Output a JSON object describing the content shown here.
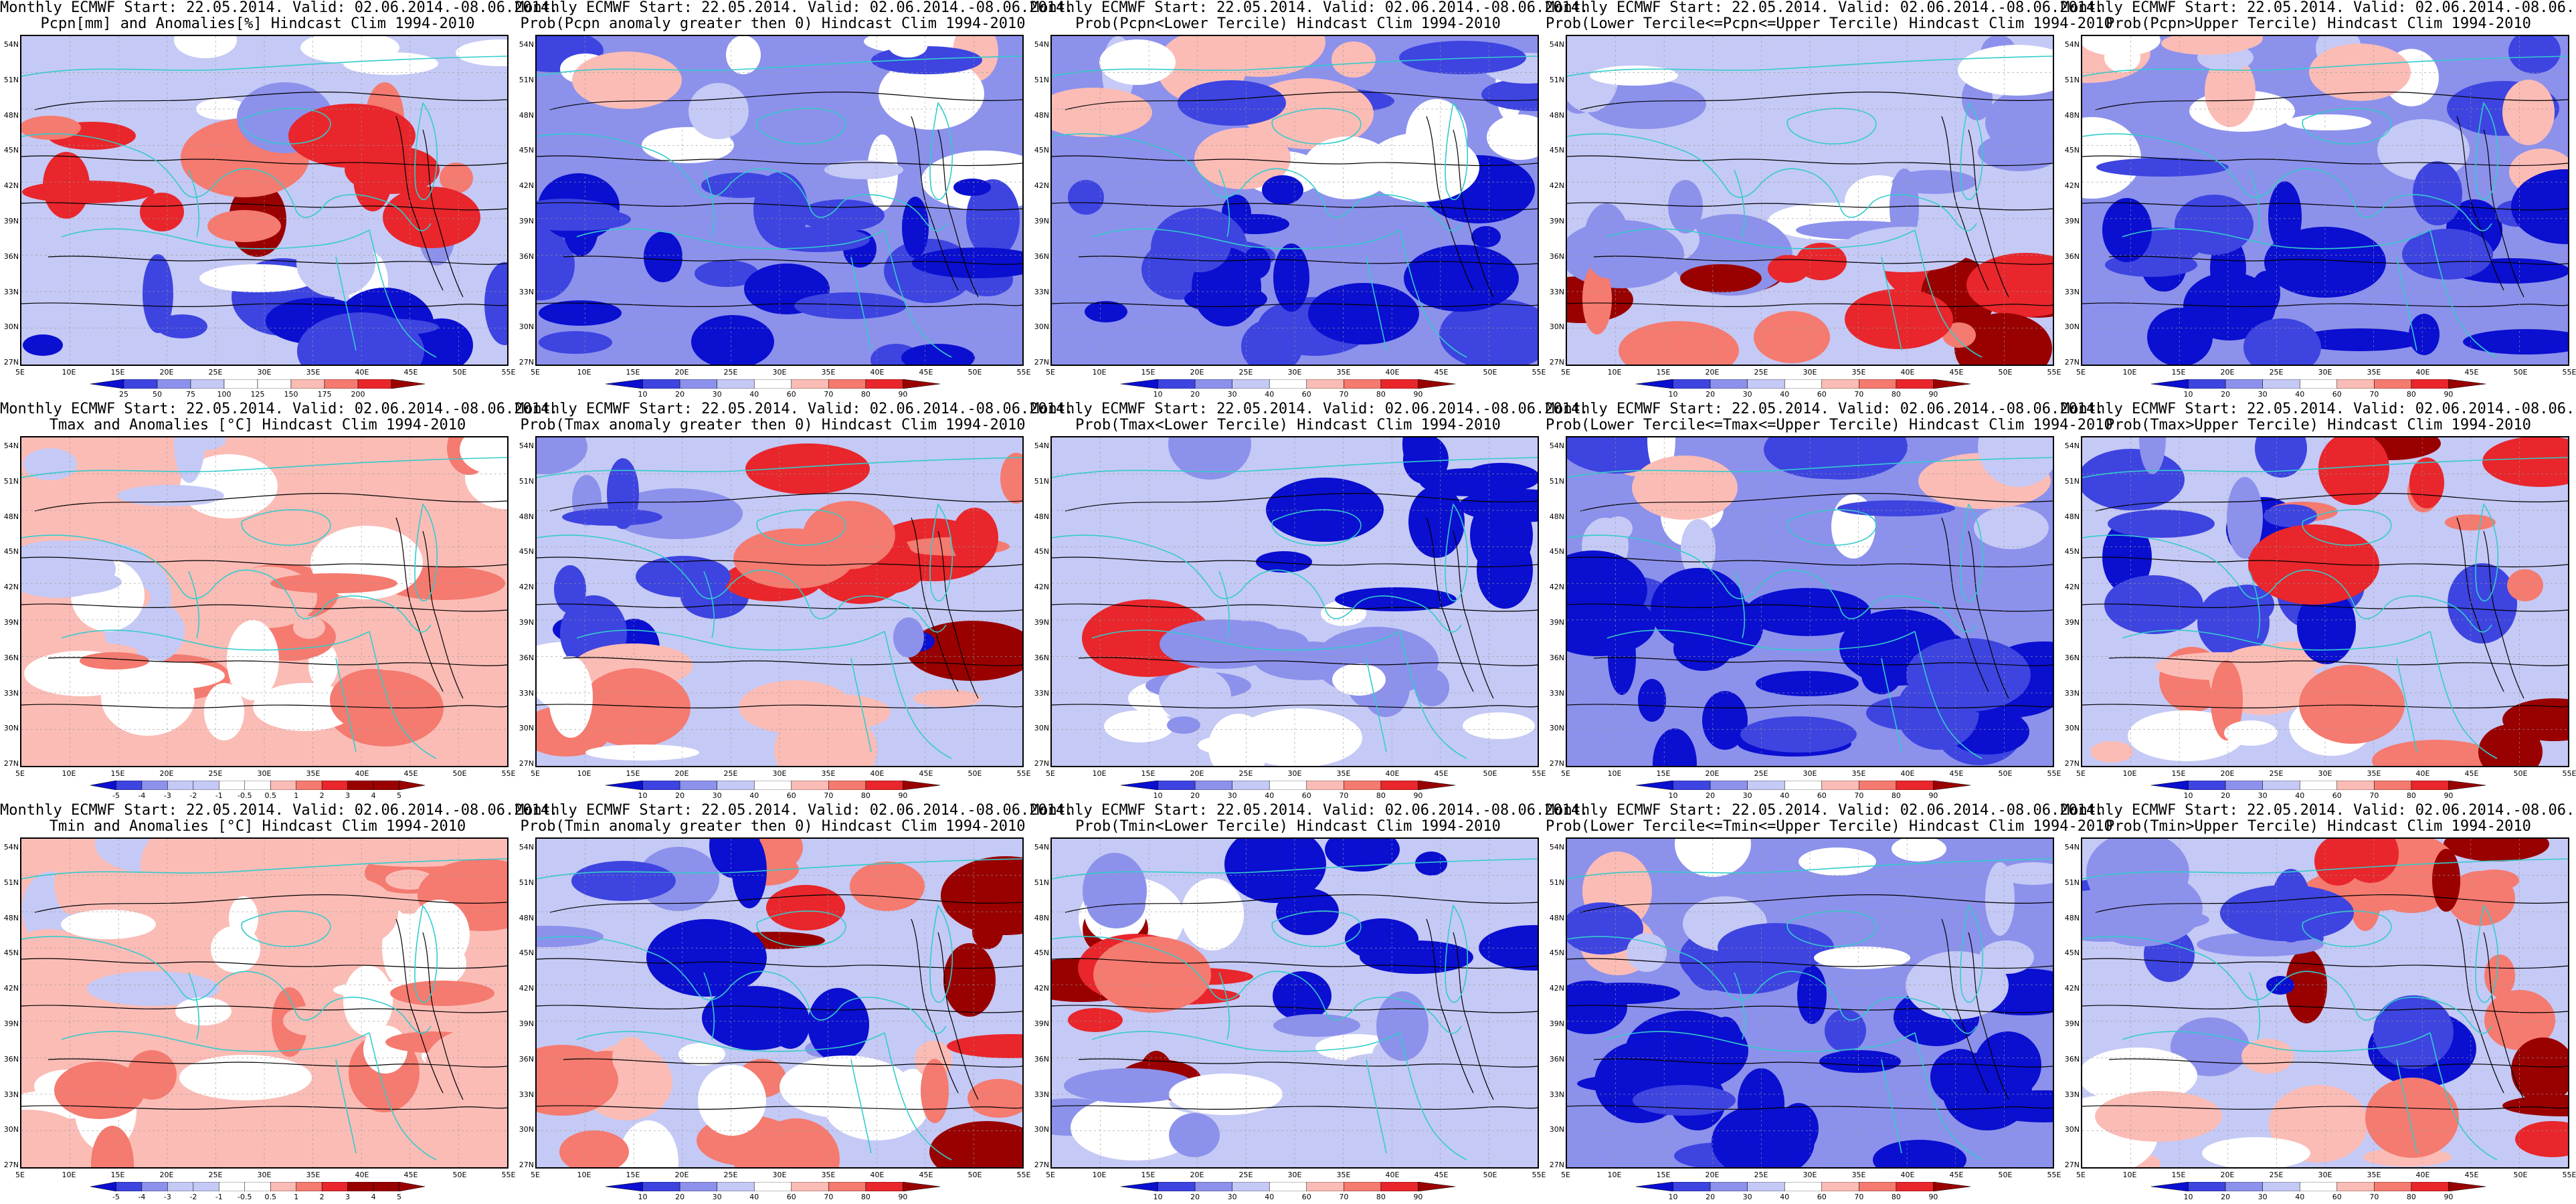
{
  "title_line1": "Monthly ECMWF Start: 22.05.2014. Valid: 02.06.2014.-08.06.2014.",
  "lat_ticks": [
    "54N",
    "51N",
    "48N",
    "45N",
    "42N",
    "39N",
    "36N",
    "33N",
    "30N",
    "27N"
  ],
  "lon_ticks": [
    "5E",
    "10E",
    "15E",
    "20E",
    "25E",
    "30E",
    "35E",
    "40E",
    "45E",
    "50E",
    "55E"
  ],
  "colors": {
    "deep_red": "#990000",
    "red": "#e8262b",
    "salmon": "#f57a6f",
    "pink": "#fbbcb6",
    "white": "#ffffff",
    "pale_blue": "#c5c9f5",
    "light_blue": "#8c91ec",
    "blue": "#3d44e0",
    "deep_blue": "#0a0fd0",
    "coast": "#33cccc",
    "contour": "#000000"
  },
  "colorbars": {
    "pcpn_anom": [
      "25",
      "50",
      "75",
      "100",
      "125",
      "150",
      "175",
      "200"
    ],
    "temp_anom": [
      "-5",
      "-4",
      "-3",
      "-2",
      "-1",
      "-0.5",
      "0.5",
      "1",
      "2",
      "3",
      "4",
      "5"
    ],
    "prob_a": [
      "10",
      "20",
      "30",
      "40",
      "60",
      "70",
      "80",
      "90"
    ],
    "prob_b": [
      "10",
      "20",
      "30",
      "40",
      "60",
      "70",
      "80",
      "90"
    ]
  },
  "panels": [
    {
      "id": "p-r1c1",
      "row": 0,
      "col": 0,
      "title2": "Pcpn[mm] and Anomalies[%] Hindcast Clim 1994-2010",
      "cbar": "pcpn_anom",
      "theme": "pcpn_anom"
    },
    {
      "id": "p-r1c2",
      "row": 0,
      "col": 1,
      "title2": "Prob(Pcpn anomaly greater then 0) Hindcast Clim 1994-2010",
      "cbar": "prob_a",
      "theme": "prob_blue"
    },
    {
      "id": "p-r1c3",
      "row": 0,
      "col": 2,
      "title2": "Prob(Pcpn<Lower Tercile) Hindcast Clim 1994-2010",
      "cbar": "prob_a",
      "theme": "prob_blue"
    },
    {
      "id": "p-r1c4",
      "row": 0,
      "col": 3,
      "title2": "Prob(Lower Tercile<=Pcpn<=Upper Tercile) Hindcast Clim 1994-2010",
      "cbar": "prob_a",
      "theme": "prob_redsouth"
    },
    {
      "id": "p-r1c5",
      "row": 0,
      "col": 4,
      "title2": "Prob(Pcpn>Upper Tercile) Hindcast Clim 1994-2010",
      "cbar": "prob_b",
      "theme": "prob_blue"
    },
    {
      "id": "p-r2c1",
      "row": 1,
      "col": 0,
      "title2": "Tmax and Anomalies [°C] Hindcast Clim 1994-2010",
      "cbar": "temp_anom",
      "theme": "temp_anom"
    },
    {
      "id": "p-r2c2",
      "row": 1,
      "col": 1,
      "title2": "Prob(Tmax anomaly greater then 0) Hindcast Clim 1994-2010",
      "cbar": "prob_a",
      "theme": "prob_mixed"
    },
    {
      "id": "p-r2c3",
      "row": 1,
      "col": 2,
      "title2": "Prob(Tmax<Lower Tercile) Hindcast Clim 1994-2010",
      "cbar": "prob_a",
      "theme": "prob_redwest"
    },
    {
      "id": "p-r2c4",
      "row": 1,
      "col": 3,
      "title2": "Prob(Lower Tercile<=Tmax<=Upper Tercile) Hindcast Clim 1994-2010",
      "cbar": "prob_a",
      "theme": "prob_blue"
    },
    {
      "id": "p-r2c5",
      "row": 1,
      "col": 4,
      "title2": "Prob(Tmax>Upper Tercile) Hindcast Clim 1994-2010",
      "cbar": "prob_b",
      "theme": "prob_mixed"
    },
    {
      "id": "p-r3c1",
      "row": 2,
      "col": 0,
      "title2": "Tmin and Anomalies [°C] Hindcast Clim 1994-2010",
      "cbar": "temp_anom",
      "theme": "temp_anom"
    },
    {
      "id": "p-r3c2",
      "row": 2,
      "col": 1,
      "title2": "Prob(Tmin anomaly greater then 0) Hindcast Clim 1994-2010",
      "cbar": "prob_a",
      "theme": "prob_mixed"
    },
    {
      "id": "p-r3c3",
      "row": 2,
      "col": 2,
      "title2": "Prob(Tmin<Lower Tercile) Hindcast Clim 1994-2010",
      "cbar": "prob_a",
      "theme": "prob_redwest"
    },
    {
      "id": "p-r3c4",
      "row": 2,
      "col": 3,
      "title2": "Prob(Lower Tercile<=Tmin<=Upper Tercile) Hindcast Clim 1994-2010",
      "cbar": "prob_a",
      "theme": "prob_blue"
    },
    {
      "id": "p-r3c5",
      "row": 2,
      "col": 4,
      "title2": "Prob(Tmin>Upper Tercile) Hindcast Clim 1994-2010",
      "cbar": "prob_b",
      "theme": "prob_mixed"
    }
  ]
}
